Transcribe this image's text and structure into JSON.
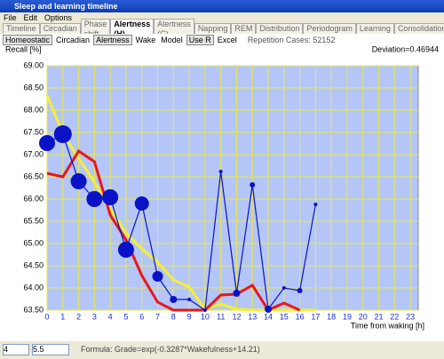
{
  "window": {
    "title": "Sleep and learning timeline"
  },
  "menu": [
    "File",
    "Edit",
    "Options"
  ],
  "tabs": [
    "Timeline",
    "Circadian",
    "Phase shift",
    "Alertness (H)",
    "Alertness (C)",
    "Napping",
    "REM",
    "Distribution",
    "Periodogram",
    "Learning",
    "Consolidation"
  ],
  "toolbar": {
    "buttons": [
      "Homeostatic",
      "Circadian",
      "Alertness",
      "Wake",
      "Model",
      "Use R",
      "Excel"
    ],
    "status": "Repetition Cases: 52152"
  },
  "footer": {
    "inputs": [
      "4",
      "5.5"
    ],
    "formula": "Formula: Grade=exp(-0.3287*Wakefulness+14.21)"
  },
  "chart_data": {
    "type": "line",
    "y_label": "Recall [%]",
    "x_label": "Time from waking [h]",
    "annotation": "Deviation=0.46944",
    "xlim": [
      0,
      23.5
    ],
    "xticks": [
      0,
      1,
      2,
      3,
      4,
      5,
      6,
      7,
      8,
      9,
      10,
      11,
      12,
      13,
      14,
      15,
      16,
      17,
      18,
      19,
      20,
      21,
      22,
      23
    ],
    "ylim": [
      63.5,
      69.0
    ],
    "yticks": [
      {
        "value": 63.5,
        "label": "63.50"
      },
      {
        "value": 64.0,
        "label": "64.00"
      },
      {
        "value": 64.5,
        "label": "64.50"
      },
      {
        "value": 65.0,
        "label": "65.00"
      },
      {
        "value": 65.5,
        "label": "65.50"
      },
      {
        "value": 66.0,
        "label": "66.00"
      },
      {
        "value": 66.5,
        "label": "66.50"
      },
      {
        "value": 67.0,
        "label": "67.00"
      },
      {
        "value": 67.5,
        "label": "67.50"
      },
      {
        "value": 68.0,
        "label": "68.00"
      },
      {
        "value": 68.5,
        "label": "68.50"
      },
      {
        "value": 69.0,
        "label": "69.00"
      }
    ],
    "grid": true,
    "grid_color": "#e8e84a",
    "background": "#b4c6f8",
    "series": [
      {
        "color": "#f5f032",
        "width": 3,
        "x": [
          0,
          1,
          2,
          3,
          4,
          5,
          6,
          7,
          8,
          9,
          10,
          11,
          12,
          13,
          14,
          15,
          16,
          17
        ],
        "values": [
          68.34,
          67.48,
          66.92,
          66.38,
          65.78,
          65.24,
          64.88,
          64.58,
          64.18,
          64.02,
          63.52,
          63.64,
          63.52,
          63.5,
          63.5,
          63.5,
          63.5,
          63.5
        ]
      },
      {
        "color": "#e81818",
        "width": 3,
        "x": [
          0,
          1,
          2,
          3,
          4,
          5,
          6,
          7,
          8,
          9,
          10,
          11,
          12,
          13,
          14,
          15,
          16
        ],
        "values": [
          66.58,
          66.5,
          67.08,
          66.84,
          65.64,
          65.08,
          64.28,
          63.68,
          63.5,
          63.5,
          63.5,
          63.84,
          63.86,
          64.06,
          63.5,
          63.66,
          63.5
        ]
      },
      {
        "color": "#0a12c8",
        "width": 1.2,
        "x": [
          0,
          1,
          2,
          3,
          4,
          5,
          6,
          7,
          8,
          9,
          10,
          11,
          12,
          13,
          14,
          15,
          16,
          17
        ],
        "values": [
          67.26,
          67.46,
          66.4,
          66.0,
          66.04,
          64.86,
          65.9,
          64.26,
          63.74,
          63.74,
          63.5,
          66.62,
          63.88,
          66.32,
          63.52,
          64.0,
          63.94,
          65.88
        ],
        "sizes": [
          9,
          10,
          9,
          9,
          9,
          9,
          8,
          6,
          4,
          2,
          2,
          2,
          4,
          3,
          4,
          2,
          3,
          2
        ]
      }
    ]
  }
}
